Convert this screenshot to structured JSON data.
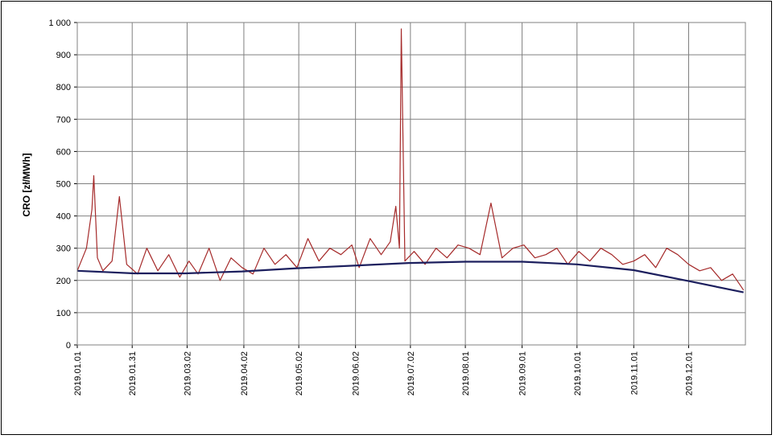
{
  "chart_data": {
    "type": "line",
    "title": "",
    "xlabel": "",
    "ylabel": "CRO [zł/MWh]",
    "ylim": [
      0,
      1000
    ],
    "yticks": [
      0,
      100,
      200,
      300,
      400,
      500,
      600,
      700,
      800,
      900,
      1000
    ],
    "ytick_labels": [
      "0",
      "100",
      "200",
      "300",
      "400",
      "500",
      "600",
      "700",
      "800",
      "900",
      "1 000"
    ],
    "xlim": [
      "2019-01-01",
      "2020-01-01"
    ],
    "xtick_labels": [
      "2019.01.01",
      "2019.01.31",
      "2019.03.02",
      "2019.04.02",
      "2019.05.02",
      "2019.06.02",
      "2019.07.02",
      "2019.08.01",
      "2019.09.01",
      "2019.10.01",
      "2019.11.01",
      "2019.12.01"
    ],
    "xtick_dates": [
      "2019-01-01",
      "2019-01-31",
      "2019-03-02",
      "2019-04-02",
      "2019-05-02",
      "2019-06-02",
      "2019-07-02",
      "2019-08-01",
      "2019-09-01",
      "2019-10-01",
      "2019-11-01",
      "2019-12-01"
    ],
    "grid": true,
    "series": [
      {
        "color": "#a52a2a",
        "x": [
          "2019-01-01",
          "2019-01-06",
          "2019-01-09",
          "2019-01-10",
          "2019-01-12",
          "2019-01-15",
          "2019-01-20",
          "2019-01-24",
          "2019-01-28",
          "2019-02-03",
          "2019-02-08",
          "2019-02-14",
          "2019-02-20",
          "2019-02-26",
          "2019-03-03",
          "2019-03-08",
          "2019-03-14",
          "2019-03-20",
          "2019-03-26",
          "2019-04-01",
          "2019-04-07",
          "2019-04-13",
          "2019-04-19",
          "2019-04-25",
          "2019-05-01",
          "2019-05-07",
          "2019-05-13",
          "2019-05-19",
          "2019-05-25",
          "2019-05-31",
          "2019-06-04",
          "2019-06-10",
          "2019-06-16",
          "2019-06-21",
          "2019-06-24",
          "2019-06-26",
          "2019-06-27",
          "2019-06-29",
          "2019-07-04",
          "2019-07-10",
          "2019-07-16",
          "2019-07-22",
          "2019-07-28",
          "2019-08-03",
          "2019-08-09",
          "2019-08-15",
          "2019-08-21",
          "2019-08-27",
          "2019-09-02",
          "2019-09-08",
          "2019-09-14",
          "2019-09-20",
          "2019-09-26",
          "2019-10-02",
          "2019-10-08",
          "2019-10-14",
          "2019-10-20",
          "2019-10-26",
          "2019-11-01",
          "2019-11-07",
          "2019-11-13",
          "2019-11-19",
          "2019-11-25",
          "2019-12-01",
          "2019-12-07",
          "2019-12-13",
          "2019-12-19",
          "2019-12-25",
          "2019-12-31"
        ],
        "y": [
          230,
          300,
          420,
          525,
          270,
          230,
          260,
          460,
          250,
          220,
          300,
          230,
          280,
          210,
          260,
          220,
          300,
          200,
          270,
          240,
          220,
          300,
          250,
          280,
          240,
          330,
          260,
          300,
          280,
          310,
          240,
          330,
          280,
          320,
          430,
          300,
          980,
          260,
          290,
          250,
          300,
          270,
          310,
          300,
          280,
          440,
          270,
          300,
          310,
          270,
          280,
          300,
          250,
          290,
          260,
          300,
          280,
          250,
          260,
          280,
          240,
          300,
          280,
          250,
          230,
          240,
          200,
          220,
          170
        ]
      },
      {
        "color": "#1c1f5e",
        "x": [
          "2019-01-01",
          "2019-02-01",
          "2019-03-01",
          "2019-04-01",
          "2019-05-01",
          "2019-06-01",
          "2019-07-01",
          "2019-08-01",
          "2019-09-01",
          "2019-10-01",
          "2019-11-01",
          "2019-12-01",
          "2019-12-31"
        ],
        "y": [
          230,
          222,
          222,
          228,
          238,
          246,
          254,
          258,
          258,
          250,
          232,
          198,
          163
        ]
      }
    ]
  }
}
